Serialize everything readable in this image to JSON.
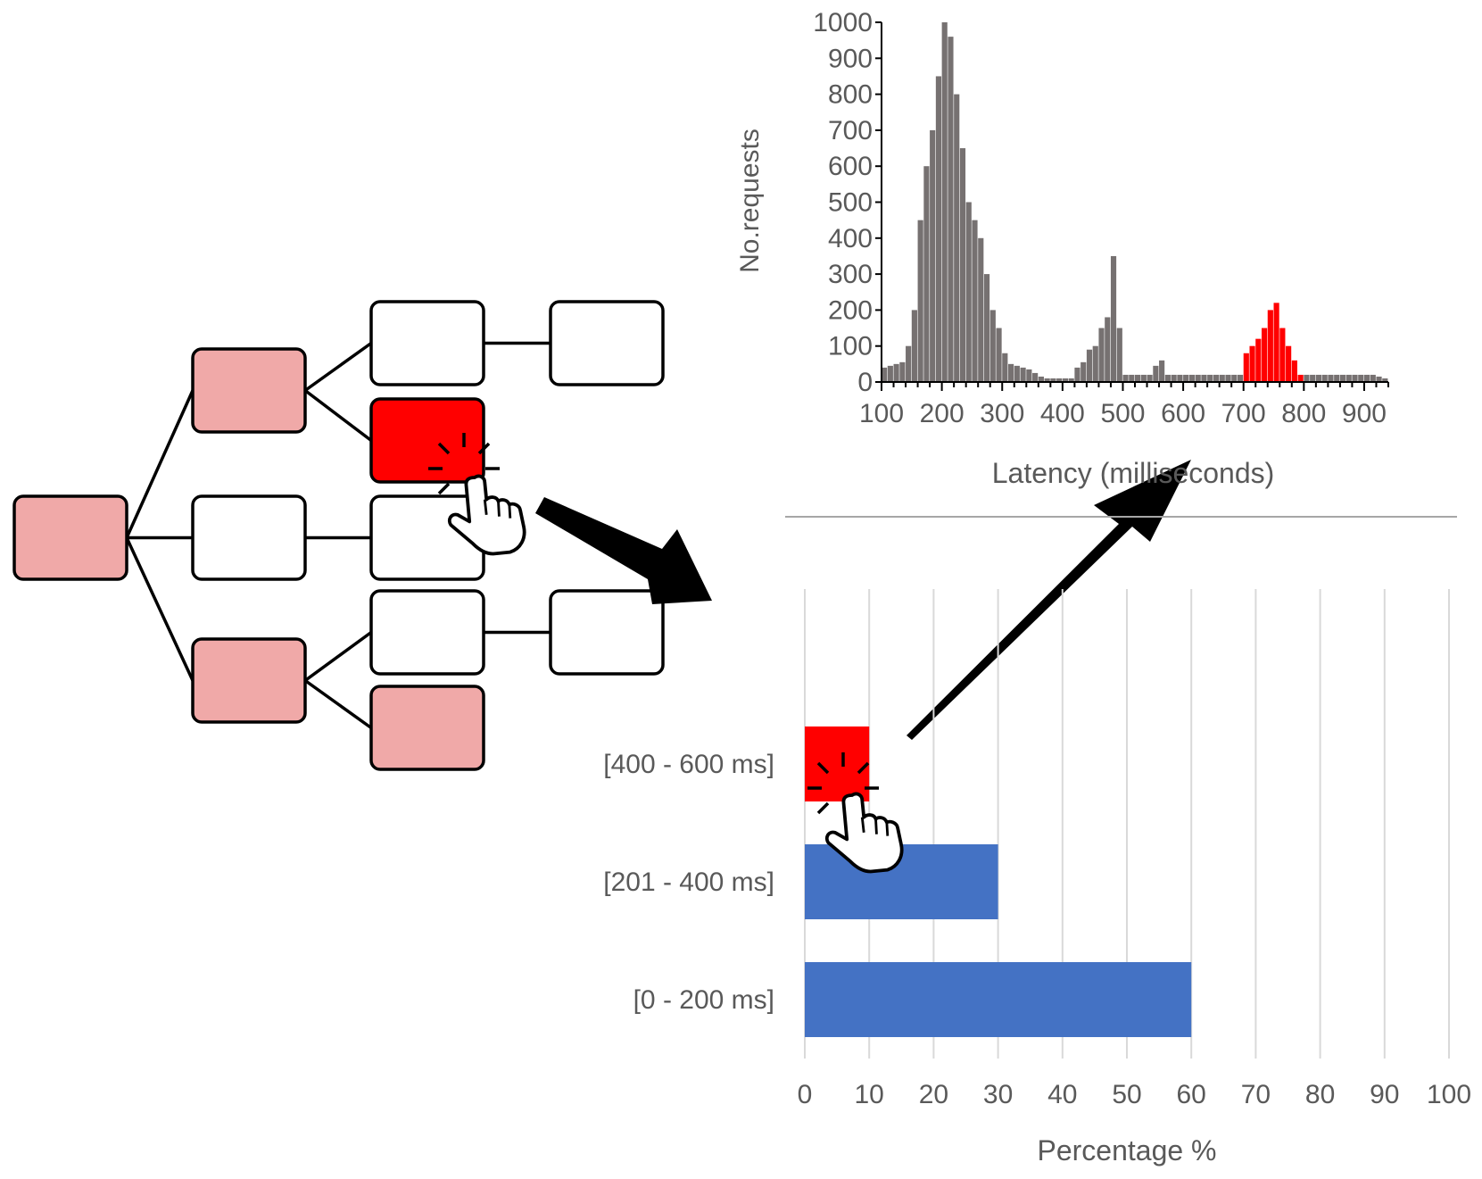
{
  "colors": {
    "pink": "#f0a9a8",
    "red": "#ff0000",
    "white": "#ffffff",
    "gray": "#767171",
    "blue": "#4472c4",
    "grid": "#d9d9d9"
  },
  "tree": {
    "nodes": [
      {
        "id": "root",
        "fill": "pink"
      },
      {
        "id": "l1-top",
        "fill": "pink"
      },
      {
        "id": "l1-mid",
        "fill": "white"
      },
      {
        "id": "l1-bot",
        "fill": "pink"
      },
      {
        "id": "l2-a",
        "fill": "white"
      },
      {
        "id": "l2-b",
        "fill": "red",
        "selected": true
      },
      {
        "id": "l2-c",
        "fill": "white"
      },
      {
        "id": "l2-d",
        "fill": "white"
      },
      {
        "id": "l2-e",
        "fill": "pink"
      },
      {
        "id": "l3-a",
        "fill": "white"
      },
      {
        "id": "l3-b",
        "fill": "white"
      }
    ],
    "edges": [
      [
        "root",
        "l1-top"
      ],
      [
        "root",
        "l1-mid"
      ],
      [
        "root",
        "l1-bot"
      ],
      [
        "l1-top",
        "l2-a"
      ],
      [
        "l1-top",
        "l2-b"
      ],
      [
        "l1-mid",
        "l2-c"
      ],
      [
        "l1-bot",
        "l2-d"
      ],
      [
        "l1-bot",
        "l2-e"
      ],
      [
        "l2-a",
        "l3-a"
      ],
      [
        "l2-d",
        "l3-b"
      ]
    ]
  },
  "chart_data": [
    {
      "type": "bar",
      "title": "",
      "xlabel": "Latency (milliseconds)",
      "ylabel": "No.requests",
      "xlim": [
        100,
        940
      ],
      "ylim": [
        0,
        1000
      ],
      "xticks": [
        "100",
        "200",
        "300",
        "400",
        "500",
        "600",
        "700",
        "800",
        "900"
      ],
      "yticks": [
        "0",
        "100",
        "200",
        "300",
        "400",
        "500",
        "600",
        "700",
        "800",
        "900",
        "1000"
      ],
      "bin_width": 10,
      "highlight_range": [
        700,
        800
      ],
      "values": [
        {
          "x": 100,
          "y": 40
        },
        {
          "x": 110,
          "y": 45
        },
        {
          "x": 120,
          "y": 50
        },
        {
          "x": 130,
          "y": 55
        },
        {
          "x": 140,
          "y": 100
        },
        {
          "x": 150,
          "y": 200
        },
        {
          "x": 160,
          "y": 450
        },
        {
          "x": 170,
          "y": 600
        },
        {
          "x": 180,
          "y": 700
        },
        {
          "x": 190,
          "y": 850
        },
        {
          "x": 200,
          "y": 1000
        },
        {
          "x": 210,
          "y": 960
        },
        {
          "x": 220,
          "y": 800
        },
        {
          "x": 230,
          "y": 650
        },
        {
          "x": 240,
          "y": 500
        },
        {
          "x": 250,
          "y": 450
        },
        {
          "x": 260,
          "y": 400
        },
        {
          "x": 270,
          "y": 300
        },
        {
          "x": 280,
          "y": 200
        },
        {
          "x": 290,
          "y": 150
        },
        {
          "x": 300,
          "y": 80
        },
        {
          "x": 310,
          "y": 50
        },
        {
          "x": 320,
          "y": 45
        },
        {
          "x": 330,
          "y": 40
        },
        {
          "x": 340,
          "y": 35
        },
        {
          "x": 350,
          "y": 25
        },
        {
          "x": 360,
          "y": 15
        },
        {
          "x": 370,
          "y": 10
        },
        {
          "x": 380,
          "y": 10
        },
        {
          "x": 390,
          "y": 10
        },
        {
          "x": 400,
          "y": 10
        },
        {
          "x": 410,
          "y": 10
        },
        {
          "x": 420,
          "y": 40
        },
        {
          "x": 430,
          "y": 55
        },
        {
          "x": 440,
          "y": 90
        },
        {
          "x": 450,
          "y": 100
        },
        {
          "x": 460,
          "y": 150
        },
        {
          "x": 470,
          "y": 180
        },
        {
          "x": 480,
          "y": 350
        },
        {
          "x": 490,
          "y": 150
        },
        {
          "x": 500,
          "y": 20
        },
        {
          "x": 510,
          "y": 20
        },
        {
          "x": 520,
          "y": 20
        },
        {
          "x": 530,
          "y": 20
        },
        {
          "x": 540,
          "y": 20
        },
        {
          "x": 550,
          "y": 45
        },
        {
          "x": 560,
          "y": 60
        },
        {
          "x": 570,
          "y": 20
        },
        {
          "x": 580,
          "y": 20
        },
        {
          "x": 590,
          "y": 20
        },
        {
          "x": 600,
          "y": 20
        },
        {
          "x": 610,
          "y": 20
        },
        {
          "x": 620,
          "y": 20
        },
        {
          "x": 630,
          "y": 20
        },
        {
          "x": 640,
          "y": 20
        },
        {
          "x": 650,
          "y": 20
        },
        {
          "x": 660,
          "y": 20
        },
        {
          "x": 670,
          "y": 20
        },
        {
          "x": 680,
          "y": 20
        },
        {
          "x": 690,
          "y": 20
        },
        {
          "x": 700,
          "y": 80
        },
        {
          "x": 710,
          "y": 100
        },
        {
          "x": 720,
          "y": 120
        },
        {
          "x": 730,
          "y": 150
        },
        {
          "x": 740,
          "y": 200
        },
        {
          "x": 750,
          "y": 220
        },
        {
          "x": 760,
          "y": 150
        },
        {
          "x": 770,
          "y": 100
        },
        {
          "x": 780,
          "y": 60
        },
        {
          "x": 790,
          "y": 20
        },
        {
          "x": 800,
          "y": 20
        },
        {
          "x": 810,
          "y": 20
        },
        {
          "x": 820,
          "y": 20
        },
        {
          "x": 830,
          "y": 20
        },
        {
          "x": 840,
          "y": 20
        },
        {
          "x": 850,
          "y": 20
        },
        {
          "x": 860,
          "y": 20
        },
        {
          "x": 870,
          "y": 20
        },
        {
          "x": 880,
          "y": 20
        },
        {
          "x": 890,
          "y": 20
        },
        {
          "x": 900,
          "y": 20
        },
        {
          "x": 910,
          "y": 20
        },
        {
          "x": 920,
          "y": 15
        },
        {
          "x": 930,
          "y": 10
        }
      ]
    },
    {
      "type": "bar",
      "orientation": "horizontal",
      "title": "",
      "xlabel": "Percentage %",
      "ylabel": "",
      "xlim": [
        0,
        100
      ],
      "xticks": [
        "0",
        "10",
        "20",
        "30",
        "40",
        "50",
        "60",
        "70",
        "80",
        "90",
        "100"
      ],
      "grid": true,
      "categories": [
        "[400 - 600 ms]",
        "[201 - 400 ms]",
        "[0 - 200 ms]"
      ],
      "values": [
        10,
        30,
        60
      ],
      "highlight_category": "[400 - 600 ms]"
    }
  ]
}
